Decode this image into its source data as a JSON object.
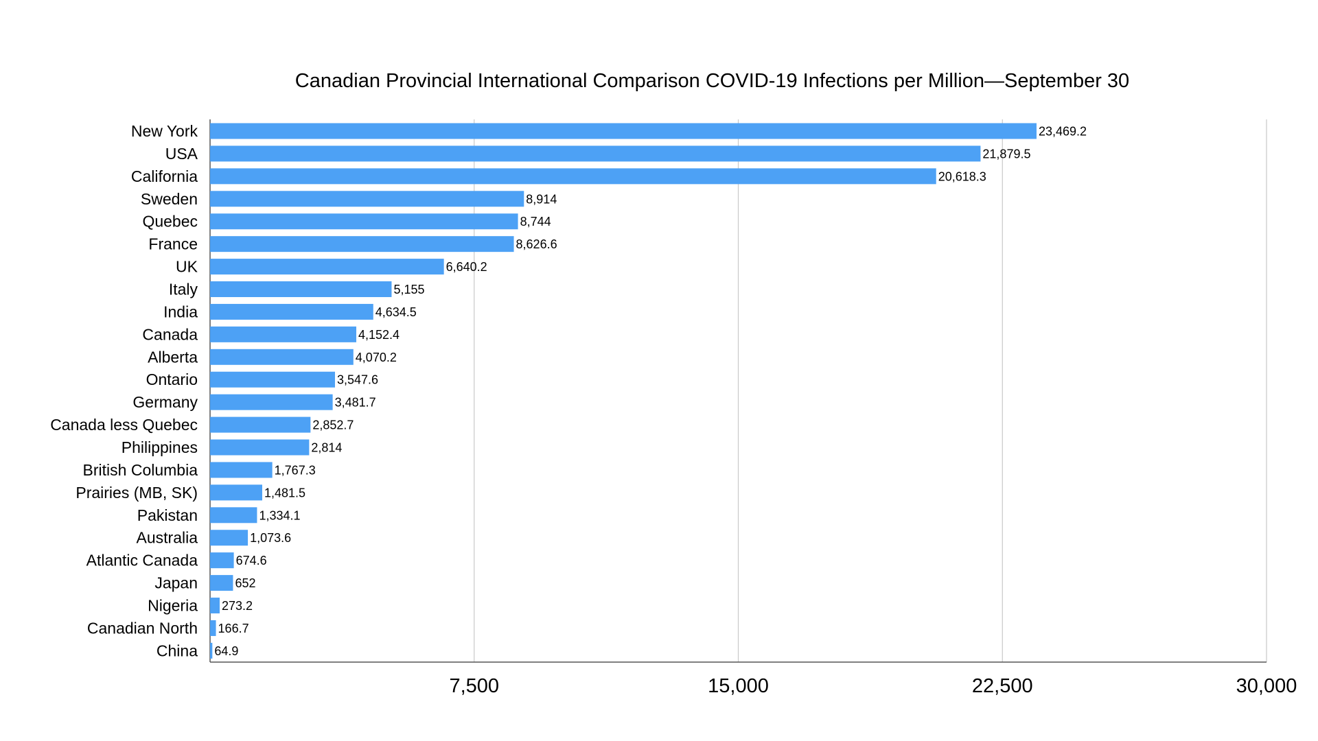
{
  "chart_data": {
    "type": "bar",
    "orientation": "horizontal",
    "title": "Canadian Provincial International Comparison COVID-19 Infections per Million—September 30",
    "xlabel": "",
    "ylabel": "",
    "xlim": [
      0,
      30000
    ],
    "xticks": [
      7500,
      15000,
      22500,
      30000
    ],
    "xtick_labels": [
      "7,500",
      "15,000",
      "22,500",
      "30,000"
    ],
    "grid": "vertical",
    "bar_color": "#4da1f5",
    "categories": [
      "New York",
      "USA",
      "California",
      "Sweden",
      "Quebec",
      "France",
      "UK",
      "Italy",
      "India",
      "Canada",
      "Alberta",
      "Ontario",
      "Germany",
      "Canada less Quebec",
      "Philippines",
      "British Columbia",
      "Prairies (MB, SK)",
      "Pakistan",
      "Australia",
      "Atlantic Canada",
      "Japan",
      "Nigeria",
      "Canadian North",
      "China"
    ],
    "values": [
      23469.2,
      21879.5,
      20618.3,
      8914,
      8744,
      8626.6,
      6640.2,
      5155,
      4634.5,
      4152.4,
      4070.2,
      3547.6,
      3481.7,
      2852.7,
      2814,
      1767.3,
      1481.5,
      1334.1,
      1073.6,
      674.6,
      652,
      273.2,
      166.7,
      64.9
    ],
    "value_labels": [
      "23,469.2",
      "21,879.5",
      "20,618.3",
      "8,914",
      "8,744",
      "8,626.6",
      "6,640.2",
      "5,155",
      "4,634.5",
      "4,152.4",
      "4,070.2",
      "3,547.6",
      "3,481.7",
      "2,852.7",
      "2,814",
      "1,767.3",
      "1,481.5",
      "1,334.1",
      "1,073.6",
      "674.6",
      "652",
      "273.2",
      "166.7",
      "64.9"
    ]
  }
}
